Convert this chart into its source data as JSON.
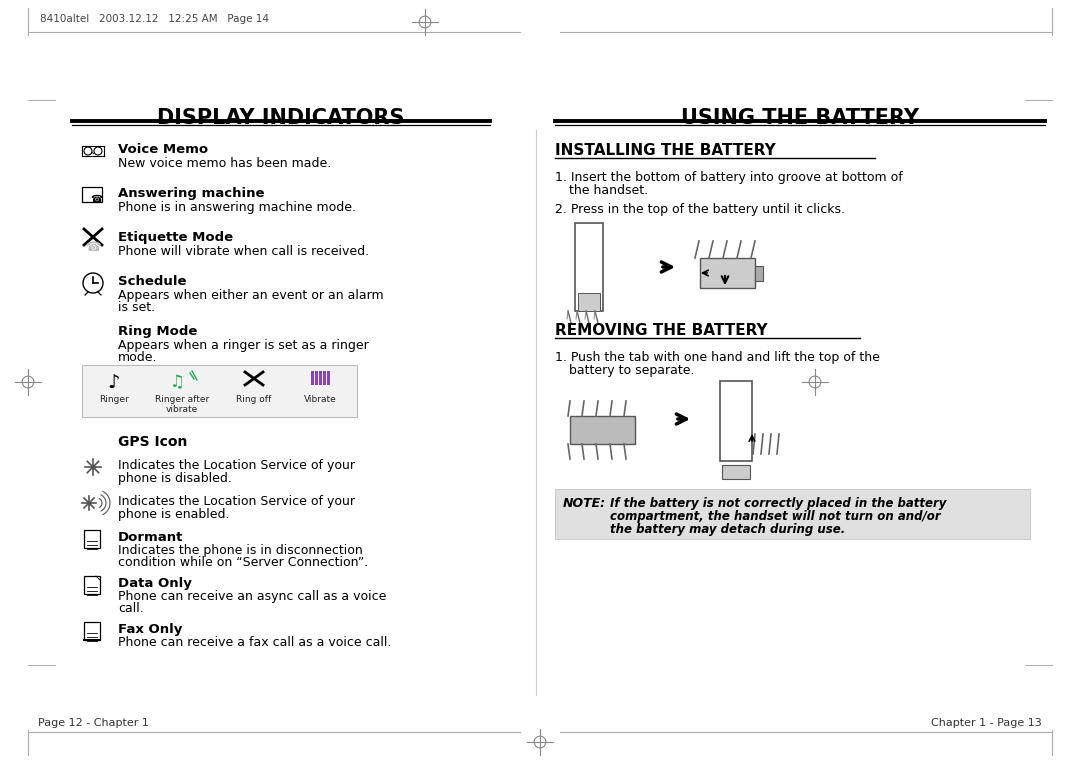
{
  "bg_color": "#ffffff",
  "header_text": "8410altel   2003.12.12   12:25 AM   Page 14",
  "left_title": "DISPLAY INDICATORS",
  "right_title": "USING THE BATTERY",
  "page_left": "Page 12 - Chapter 1",
  "page_right": "Chapter 1 - Page 13",
  "ring_icons": [
    "Ringer",
    "Ringer after\nvibrate",
    "Ring off",
    "Vibrate"
  ],
  "install_title": "INSTALLING THE BATTERY",
  "remove_title": "REMOVING THE BATTERY",
  "note_label": "NOTE:",
  "note_bg": "#e0e0e0",
  "divider_color": "#cccccc"
}
